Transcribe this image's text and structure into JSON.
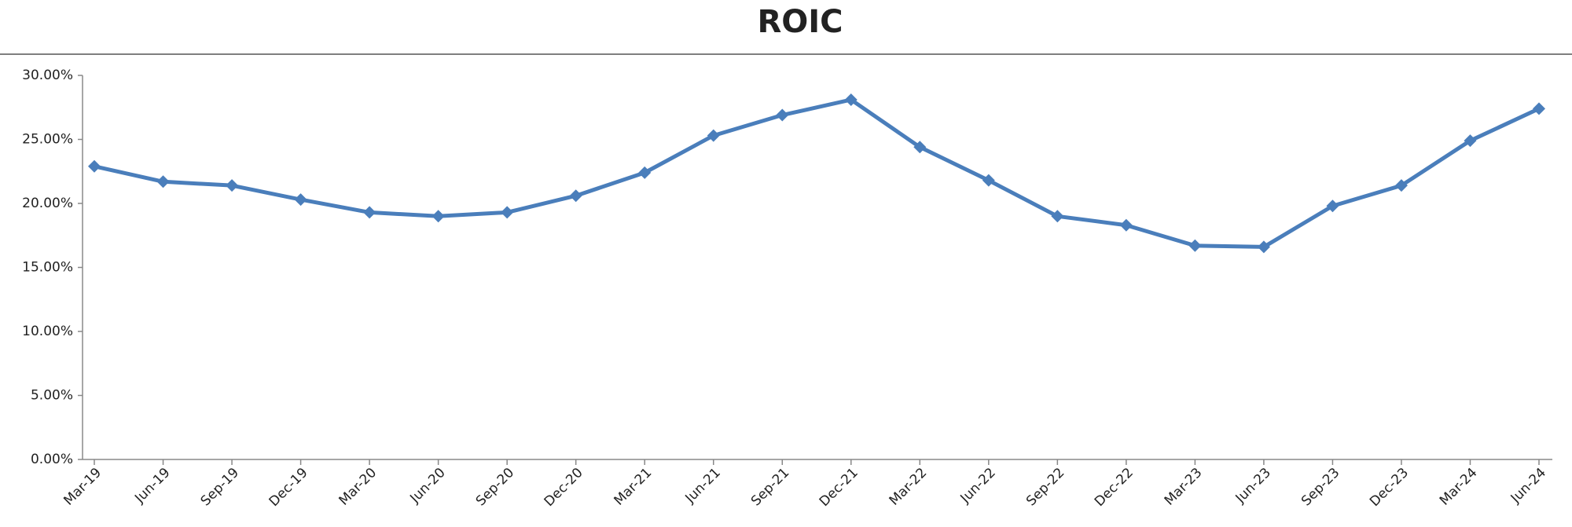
{
  "chart_data": {
    "type": "line",
    "title": "ROIC",
    "categories": [
      "Mar-19",
      "Jun-19",
      "Sep-19",
      "Dec-19",
      "Mar-20",
      "Jun-20",
      "Sep-20",
      "Dec-20",
      "Mar-21",
      "Jun-21",
      "Sep-21",
      "Dec-21",
      "Mar-22",
      "Jun-22",
      "Sep-22",
      "Dec-22",
      "Mar-23",
      "Jun-23",
      "Sep-23",
      "Dec-23",
      "Mar-24",
      "Jun-24"
    ],
    "series": [
      {
        "name": "ROIC",
        "color": "#4a7ebb",
        "values": [
          22.9,
          21.7,
          21.4,
          20.3,
          19.3,
          19.0,
          19.3,
          20.6,
          22.4,
          25.3,
          26.9,
          28.1,
          24.4,
          21.8,
          19.0,
          18.3,
          16.7,
          16.6,
          19.8,
          21.4,
          24.9,
          27.4
        ]
      }
    ],
    "ylim": [
      0,
      30
    ],
    "yticks": [
      {
        "value": 0,
        "label": "0.00%"
      },
      {
        "value": 5,
        "label": "5.00%"
      },
      {
        "value": 10,
        "label": "10.00%"
      },
      {
        "value": 15,
        "label": "15.00%"
      },
      {
        "value": 20,
        "label": "20.00%"
      },
      {
        "value": 25,
        "label": "25.00%"
      },
      {
        "value": 30,
        "label": "30.00%"
      }
    ],
    "grid": false
  }
}
